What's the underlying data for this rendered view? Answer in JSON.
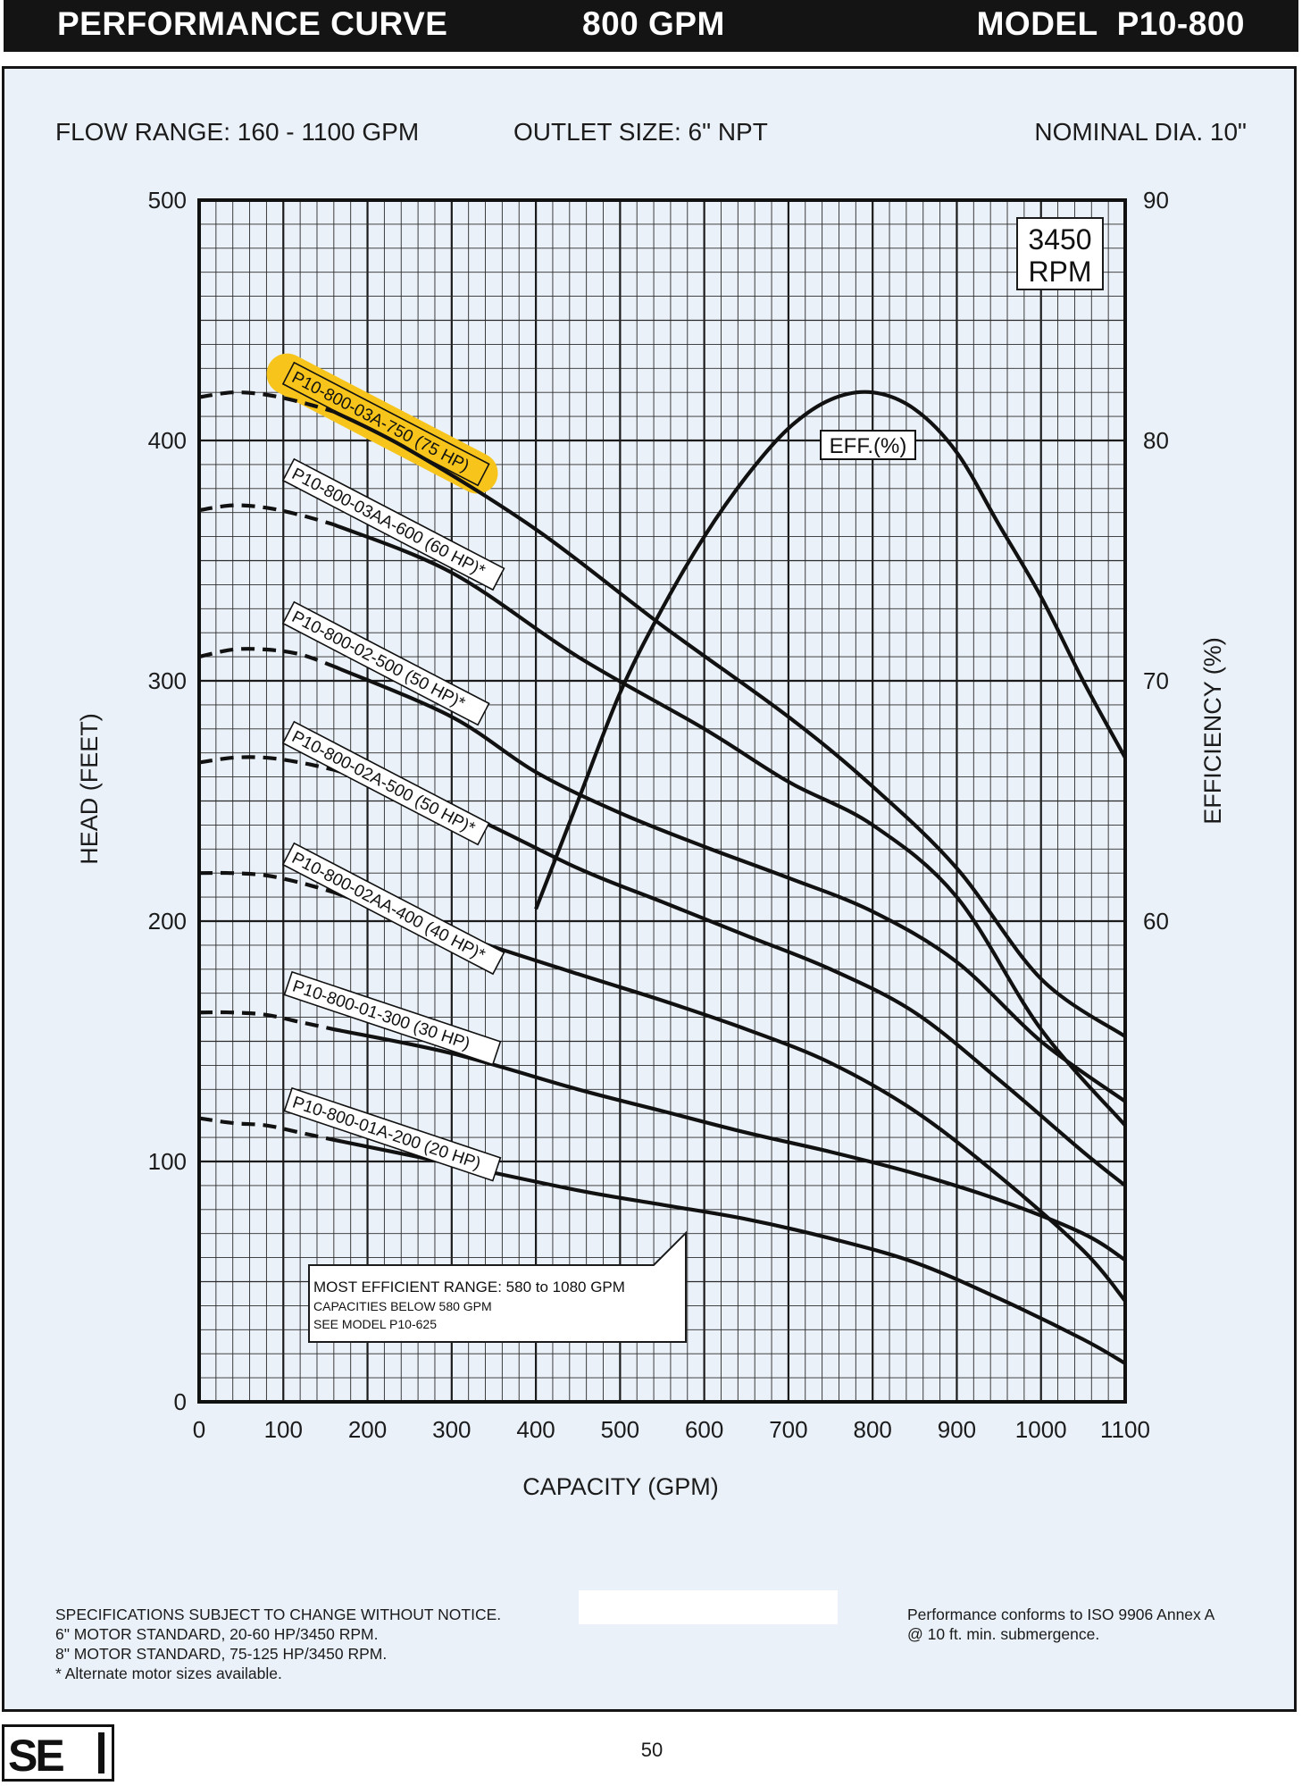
{
  "header": {
    "title": "PERFORMANCE CURVE",
    "flow_label": "800 GPM",
    "model": "MODEL  P10-800"
  },
  "info": {
    "flow_range": "FLOW RANGE: 160 - 1100 GPM",
    "outlet_size": "OUTLET SIZE: 6\" NPT",
    "nominal_dia": "NOMINAL DIA. 10\""
  },
  "rpm_box": {
    "line1": "3450",
    "line2": "RPM"
  },
  "efficient_range_note": {
    "line1": "MOST EFFICIENT RANGE: 580 to 1080 GPM",
    "line2": "CAPACITIES BELOW 580 GPM",
    "line3": "SEE  MODEL P10-625"
  },
  "chart_data": {
    "type": "line",
    "title": "PERFORMANCE CURVE",
    "xlabel": "CAPACITY (GPM)",
    "ylabel": "HEAD (FEET)",
    "y2label": "EFFICIENCY (%)",
    "xlim": [
      0,
      1100
    ],
    "ylim": [
      0,
      500
    ],
    "y2lim": [
      40,
      90
    ],
    "x_ticks": [
      0,
      100,
      200,
      300,
      400,
      500,
      600,
      700,
      800,
      900,
      1000,
      1100
    ],
    "y_ticks": [
      0,
      100,
      200,
      300,
      400,
      500
    ],
    "y2_ticks": [
      60,
      70,
      80,
      90
    ],
    "grid": true,
    "series": [
      {
        "name": "P10-800-03A-750 (75 HP)",
        "highlighted": true,
        "dashed": [
          [
            0,
            418
          ],
          [
            40,
            420
          ],
          [
            80,
            419
          ],
          [
            120,
            416
          ],
          [
            160,
            412
          ]
        ],
        "solid": [
          [
            160,
            412
          ],
          [
            250,
            396
          ],
          [
            400,
            363
          ],
          [
            550,
            323
          ],
          [
            700,
            285
          ],
          [
            800,
            256
          ],
          [
            900,
            222
          ],
          [
            1000,
            176
          ],
          [
            1100,
            152
          ]
        ]
      },
      {
        "name": "P10-800-03AA-600 (60 HP)*",
        "dashed": [
          [
            0,
            371
          ],
          [
            40,
            373
          ],
          [
            80,
            372
          ],
          [
            120,
            369
          ],
          [
            160,
            365
          ]
        ],
        "solid": [
          [
            160,
            365
          ],
          [
            300,
            345
          ],
          [
            450,
            310
          ],
          [
            600,
            280
          ],
          [
            700,
            258
          ],
          [
            800,
            240
          ],
          [
            900,
            210
          ],
          [
            1000,
            155
          ],
          [
            1100,
            115
          ]
        ]
      },
      {
        "name": "P10-800-02-500 (50 HP)*",
        "dashed": [
          [
            0,
            310
          ],
          [
            40,
            313
          ],
          [
            80,
            313
          ],
          [
            120,
            311
          ],
          [
            160,
            306
          ]
        ],
        "solid": [
          [
            160,
            306
          ],
          [
            300,
            285
          ],
          [
            400,
            262
          ],
          [
            500,
            245
          ],
          [
            600,
            231
          ],
          [
            700,
            218
          ],
          [
            800,
            204
          ],
          [
            900,
            183
          ],
          [
            1000,
            150
          ],
          [
            1100,
            125
          ]
        ]
      },
      {
        "name": "P10-800-02A-500 (50 HP)*",
        "dashed": [
          [
            0,
            266
          ],
          [
            40,
            268
          ],
          [
            80,
            268
          ],
          [
            120,
            266
          ],
          [
            160,
            263
          ]
        ],
        "solid": [
          [
            160,
            263
          ],
          [
            300,
            247
          ],
          [
            450,
            222
          ],
          [
            550,
            208
          ],
          [
            650,
            194
          ],
          [
            750,
            180
          ],
          [
            850,
            162
          ],
          [
            950,
            134
          ],
          [
            1050,
            104
          ],
          [
            1100,
            90
          ]
        ]
      },
      {
        "name": "P10-800-02AA-400 (40 HP)*",
        "dashed": [
          [
            0,
            220
          ],
          [
            40,
            220
          ],
          [
            80,
            219
          ],
          [
            120,
            216
          ],
          [
            160,
            212
          ]
        ],
        "solid": [
          [
            160,
            212
          ],
          [
            300,
            195
          ],
          [
            450,
            178
          ],
          [
            550,
            167
          ],
          [
            650,
            155
          ],
          [
            750,
            141
          ],
          [
            850,
            121
          ],
          [
            950,
            94
          ],
          [
            1050,
            63
          ],
          [
            1100,
            42
          ]
        ]
      },
      {
        "name": "P10-800-01-300 (30 HP)",
        "dashed": [
          [
            0,
            162
          ],
          [
            40,
            162
          ],
          [
            80,
            161
          ],
          [
            120,
            158
          ],
          [
            160,
            155
          ]
        ],
        "solid": [
          [
            160,
            155
          ],
          [
            300,
            145
          ],
          [
            450,
            130
          ],
          [
            550,
            121
          ],
          [
            650,
            112
          ],
          [
            750,
            104
          ],
          [
            850,
            95
          ],
          [
            950,
            84
          ],
          [
            1050,
            70
          ],
          [
            1100,
            59
          ]
        ]
      },
      {
        "name": "P10-800-01A-200 (20 HP)",
        "dashed": [
          [
            0,
            118
          ],
          [
            40,
            116
          ],
          [
            80,
            115
          ],
          [
            120,
            112
          ],
          [
            160,
            109
          ]
        ],
        "solid": [
          [
            160,
            109
          ],
          [
            300,
            99
          ],
          [
            450,
            88
          ],
          [
            550,
            82
          ],
          [
            650,
            76
          ],
          [
            750,
            68
          ],
          [
            850,
            58
          ],
          [
            950,
            43
          ],
          [
            1050,
            26
          ],
          [
            1100,
            16
          ]
        ]
      },
      {
        "name": "EFF.(%)",
        "axis": "right",
        "solid": [
          [
            400,
            60.5
          ],
          [
            450,
            65
          ],
          [
            500,
            69.5
          ],
          [
            550,
            73
          ],
          [
            600,
            76
          ],
          [
            650,
            78.5
          ],
          [
            700,
            80.5
          ],
          [
            750,
            81.7
          ],
          [
            800,
            82
          ],
          [
            850,
            81.3
          ],
          [
            900,
            79.5
          ],
          [
            950,
            76.5
          ],
          [
            1000,
            73.5
          ],
          [
            1050,
            70
          ],
          [
            1100,
            66.8
          ]
        ]
      }
    ]
  },
  "notes_left": [
    "SPECIFICATIONS SUBJECT TO CHANGE WITHOUT NOTICE.",
    "6\" MOTOR STANDARD, 20-60 HP/3450 RPM.",
    "8\" MOTOR STANDARD, 75-125 HP/3450 RPM.",
    "* Alternate motor sizes available."
  ],
  "notes_right": [
    "Performance conforms to ISO 9906 Annex A",
    "@ 10 ft. min. submergence."
  ],
  "footer": {
    "logo": "SE",
    "page_number": "50"
  },
  "colors": {
    "highlight": "#f6c41a",
    "header_bg": "#141414",
    "panel_bg": "#eaf1f8",
    "ink": "#1b1b1b"
  }
}
